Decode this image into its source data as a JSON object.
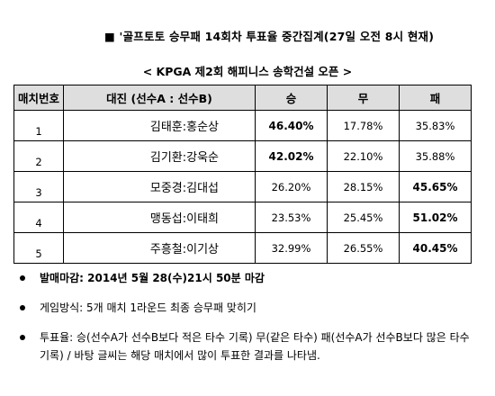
{
  "header": {
    "headline": "■ '골프토토 승무패 14회차 투표율 중간집계(27일 오전 8시 현재)",
    "subtitle": "< KPGA 제2회 해피니스 송학건설 오픈 >"
  },
  "table": {
    "columns": [
      "매치번호",
      "대진 (선수A : 선수B)",
      "승",
      "무",
      "패"
    ],
    "rows": [
      {
        "no": "1",
        "match": "김태훈:홍순상",
        "win": "46.40%",
        "draw": "17.78%",
        "lose": "35.83%",
        "bold": "win"
      },
      {
        "no": "2",
        "match": "김기환:강욱순",
        "win": "42.02%",
        "draw": "22.10%",
        "lose": "35.88%",
        "bold": "win"
      },
      {
        "no": "3",
        "match": "모중경:김대섭",
        "win": "26.20%",
        "draw": "28.15%",
        "lose": "45.65%",
        "bold": "lose"
      },
      {
        "no": "4",
        "match": "맹동섭:이태희",
        "win": "23.53%",
        "draw": "25.45%",
        "lose": "51.02%",
        "bold": "lose"
      },
      {
        "no": "5",
        "match": "주흥철:이기상",
        "win": "32.99%",
        "draw": "26.55%",
        "lose": "40.45%",
        "bold": "lose"
      }
    ]
  },
  "notes": {
    "deadline": "발매마감: 2014년 5월 28(수)21시 50분 마감",
    "method": "게임방식: 5개 매치 1라운드 최종 승무패 맞히기",
    "vote_rate": "투표율: 승(선수A가 선수B보다 적은 타수 기록) 무(같은 타수) 패(선수A가 선수B보다 많은 타수 기록) / 바탕 글씨는 해당 매치에서 많이 투표한 결과를 나타냄."
  }
}
